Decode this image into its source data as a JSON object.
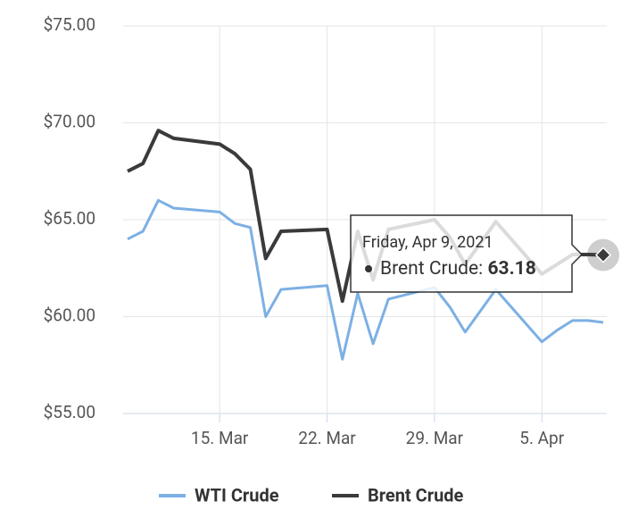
{
  "chart_data": {
    "type": "line",
    "x": [
      "2021-03-09",
      "2021-03-10",
      "2021-03-11",
      "2021-03-12",
      "2021-03-15",
      "2021-03-16",
      "2021-03-17",
      "2021-03-18",
      "2021-03-19",
      "2021-03-22",
      "2021-03-23",
      "2021-03-24",
      "2021-03-25",
      "2021-03-26",
      "2021-03-29",
      "2021-03-30",
      "2021-03-31",
      "2021-04-02",
      "2021-04-05",
      "2021-04-06",
      "2021-04-07",
      "2021-04-08",
      "2021-04-09"
    ],
    "series": [
      {
        "name": "WTI Crude",
        "color": "#7cb0e4",
        "values": [
          64.0,
          64.4,
          66.0,
          65.6,
          65.4,
          64.8,
          64.6,
          60.0,
          61.4,
          61.6,
          57.8,
          61.2,
          58.6,
          60.9,
          61.5,
          60.5,
          59.2,
          61.4,
          58.7,
          59.3,
          59.8,
          59.8,
          59.7
        ]
      },
      {
        "name": "Brent Crude",
        "color": "#3a3a3c",
        "values": [
          67.5,
          67.9,
          69.6,
          69.2,
          68.9,
          68.4,
          67.6,
          63.0,
          64.4,
          64.5,
          60.8,
          64.4,
          61.9,
          64.5,
          65.0,
          64.1,
          62.7,
          64.9,
          62.2,
          62.7,
          63.2,
          63.2,
          63.18
        ]
      }
    ],
    "xlim": [
      "2021-03-09",
      "2021-04-09"
    ],
    "xticks": [
      {
        "value": "2021-03-15",
        "label": "15. Mar"
      },
      {
        "value": "2021-03-22",
        "label": "22. Mar"
      },
      {
        "value": "2021-03-29",
        "label": "29. Mar"
      },
      {
        "value": "2021-04-05",
        "label": "5. Apr"
      }
    ],
    "ylim": [
      55,
      75
    ],
    "yticks": [
      {
        "value": 55,
        "label": "$55.00"
      },
      {
        "value": 60,
        "label": "$60.00"
      },
      {
        "value": 65,
        "label": "$65.00"
      },
      {
        "value": 70,
        "label": "$70.00"
      },
      {
        "value": 75,
        "label": "$75.00"
      }
    ],
    "grid": true,
    "tooltip": {
      "header": "Friday, Apr 9, 2021",
      "label": "Brent Crude:",
      "value": 63.18
    }
  }
}
